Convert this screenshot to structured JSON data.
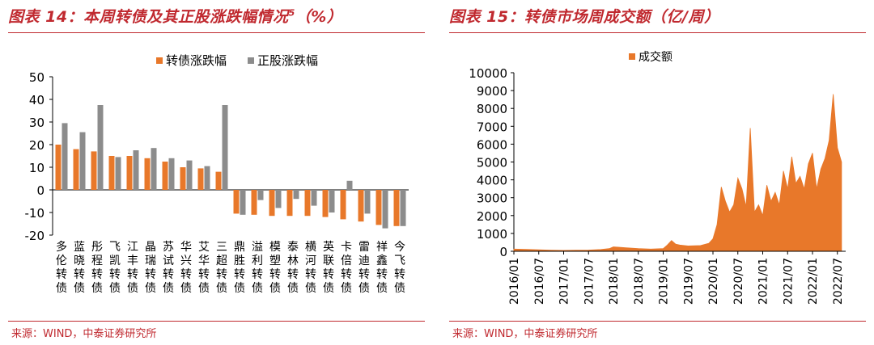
{
  "left": {
    "title_prefix": "图表 14：本周转债及其正股涨跌幅情况",
    "title_sup": "5",
    "title_suffix": "（%）",
    "source": "来源：WIND，中泰证券研究所",
    "chart_data": {
      "type": "bar",
      "categories": [
        "多伦转债",
        "蓝晓转债",
        "彤程转债",
        "飞凯转债",
        "江丰转债",
        "晶瑞转债",
        "苏试转债",
        "华兴转债",
        "艾华转债",
        "三超转债",
        "鼎胜转债",
        "溢利转债",
        "模塑转债",
        "泰林转债",
        "横河转债",
        "英联转债",
        "卡倍转债",
        "雷迪转债",
        "祥鑫转债",
        "今飞转债"
      ],
      "series": [
        {
          "name": "转债涨跌幅",
          "color": "#e8782a",
          "values": [
            20,
            18,
            17,
            15,
            15,
            14,
            12.5,
            10,
            9.5,
            8,
            -10.5,
            -11,
            -11.5,
            -11.5,
            -11.5,
            -12,
            -13,
            -14,
            -15.5,
            -16
          ]
        },
        {
          "name": "正股涨跌幅",
          "color": "#8c8c8c",
          "values": [
            29.5,
            25.5,
            37.5,
            14.5,
            17.5,
            18.5,
            14,
            13,
            10.5,
            37.5,
            -11,
            -4.5,
            -8,
            -4,
            -7,
            -10,
            4,
            -10.5,
            -17,
            -16
          ]
        }
      ],
      "ylim": [
        -20,
        50
      ],
      "yticks": [
        -20,
        -10,
        0,
        10,
        20,
        30,
        40,
        50
      ],
      "legend_position": "top"
    }
  },
  "right": {
    "title": "图表 15：转债市场周成交额（亿/周）",
    "source": "来源：WIND，中泰证券研究所",
    "chart_data": {
      "type": "area",
      "series": [
        {
          "name": "成交额",
          "color": "#e8782a"
        }
      ],
      "ylim": [
        0,
        10000
      ],
      "yticks": [
        0,
        1000,
        2000,
        3000,
        4000,
        5000,
        6000,
        7000,
        8000,
        9000,
        10000
      ],
      "xticks": [
        "2016/01",
        "2016/07",
        "2017/01",
        "2017/07",
        "2018/01",
        "2018/07",
        "2019/01",
        "2019/07",
        "2020/01",
        "2020/07",
        "2021/01",
        "2021/07",
        "2022/01",
        "2022/07"
      ],
      "x": [
        "2016/01",
        "2016/04",
        "2016/07",
        "2016/10",
        "2017/01",
        "2017/04",
        "2017/07",
        "2017/10",
        "2017/12",
        "2018/01",
        "2018/04",
        "2018/07",
        "2018/10",
        "2019/01",
        "2019/02",
        "2019/03",
        "2019/04",
        "2019/05",
        "2019/07",
        "2019/10",
        "2019/12",
        "2020/01",
        "2020/02",
        "2020/03",
        "2020/04",
        "2020/05",
        "2020/06",
        "2020/07",
        "2020/08",
        "2020/09",
        "2020/10",
        "2020/11",
        "2020/12",
        "2021/01",
        "2021/02",
        "2021/03",
        "2021/04",
        "2021/05",
        "2021/06",
        "2021/07",
        "2021/08",
        "2021/09",
        "2021/10",
        "2021/11",
        "2021/12",
        "2022/01",
        "2022/02",
        "2022/03",
        "2022/04",
        "2022/05",
        "2022/06",
        "2022/07",
        "2022/08"
      ],
      "values": [
        120,
        110,
        80,
        60,
        50,
        60,
        70,
        100,
        150,
        250,
        200,
        150,
        120,
        150,
        350,
        600,
        400,
        350,
        300,
        320,
        450,
        700,
        1500,
        3600,
        2800,
        2200,
        2600,
        4100,
        3500,
        2500,
        6900,
        2200,
        2600,
        2000,
        3700,
        2800,
        3300,
        2600,
        4500,
        3500,
        5300,
        3800,
        4200,
        3500,
        4900,
        5500,
        3500,
        4600,
        5200,
        6200,
        8800,
        5800,
        5000
      ]
    }
  }
}
